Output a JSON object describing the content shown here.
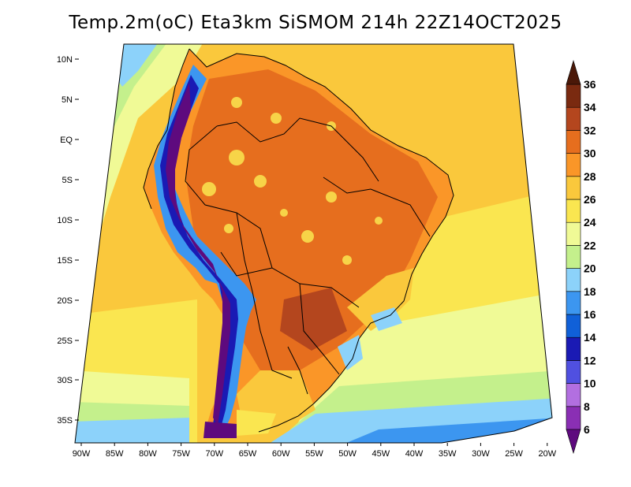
{
  "title": "Temp.2m(oC) Eta3km SiSMOM 214h 22Z14OCT2025",
  "lat_labels": [
    "10N",
    "5N",
    "EQ",
    "5S",
    "10S",
    "15S",
    "20S",
    "25S",
    "30S",
    "35S"
  ],
  "lon_labels": [
    "90W",
    "85W",
    "80W",
    "75W",
    "70W",
    "65W",
    "60W",
    "55W",
    "50W",
    "45W",
    "40W",
    "35W",
    "30W",
    "25W",
    "20W"
  ],
  "colorbar": {
    "labels": [
      "6",
      "8",
      "10",
      "12",
      "14",
      "16",
      "18",
      "20",
      "22",
      "24",
      "26",
      "28",
      "30",
      "32",
      "34",
      "36"
    ],
    "colors": [
      "#5e0a7e",
      "#8a2fb4",
      "#b26fe0",
      "#5050e0",
      "#1a1ab4",
      "#1060d8",
      "#3c96f0",
      "#8cd2fa",
      "#c4f08c",
      "#f0fa96",
      "#fae650",
      "#fac83c",
      "#fa9628",
      "#e66e1e",
      "#b4461e",
      "#7a2a10",
      "#4a1808"
    ]
  },
  "colors": {
    "ocean_tropical": "#fac83c",
    "ocean_subtropical": "#fae650",
    "ocean_temperate": "#f0fa96",
    "ocean_cold": "#c4f08c",
    "land_warm": "#fa9628",
    "land_hot": "#e66e1e",
    "andes_cold": "#5e0a7e",
    "coast_line": "#000000"
  }
}
